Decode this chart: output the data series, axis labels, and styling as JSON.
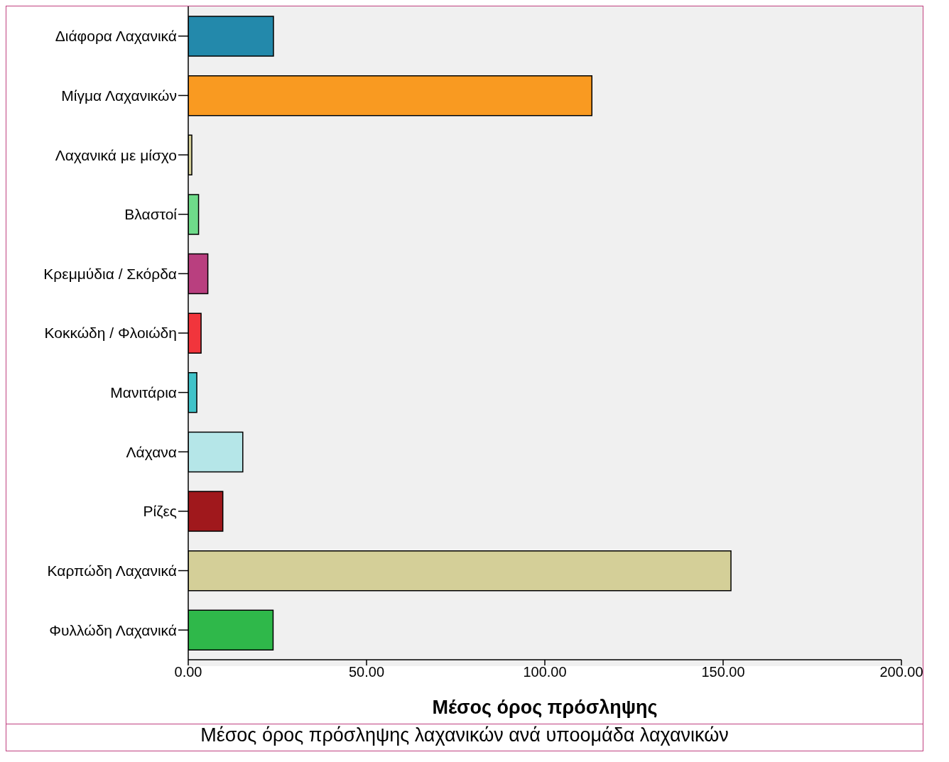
{
  "chart_data": {
    "type": "bar",
    "orientation": "horizontal",
    "categories": [
      "Διάφορα Λαχανικά",
      "Μίγμα Λαχανικών",
      "Λαχανικά με μίσχο",
      "Βλαστοί",
      "Κρεμμύδια / Σκόρδα",
      "Κοκκώδη / Φλοιώδη",
      "Μανιτάρια",
      "Λάχανα",
      "Ρίζες",
      "Καρπώδη Λαχανικά",
      "Φυλλώδη Λαχανικά"
    ],
    "values": [
      23.9,
      113.2,
      1.0,
      2.9,
      5.5,
      3.6,
      2.4,
      15.3,
      9.7,
      152.2,
      23.8
    ],
    "colors": [
      "#2389ab",
      "#f99a21",
      "#d4cf98",
      "#6fdb8a",
      "#b93f7f",
      "#f1353c",
      "#41c3c9",
      "#b5e6e8",
      "#a0181c",
      "#d4cf98",
      "#2fb84a"
    ],
    "xlabel": "Μέσος όρος πρόσληψης",
    "xlim": [
      0,
      200
    ],
    "xticks": [
      {
        "value": 0,
        "label": "0.00"
      },
      {
        "value": 50,
        "label": "50.00"
      },
      {
        "value": 100,
        "label": "100.00"
      },
      {
        "value": 150,
        "label": "150.00"
      },
      {
        "value": 200,
        "label": "200.00"
      }
    ],
    "annotations": [
      "Μέσος όρος πρόσληψης λαχανικών ανά υποομάδα λαχανικών"
    ],
    "grid": false,
    "legend": false
  }
}
